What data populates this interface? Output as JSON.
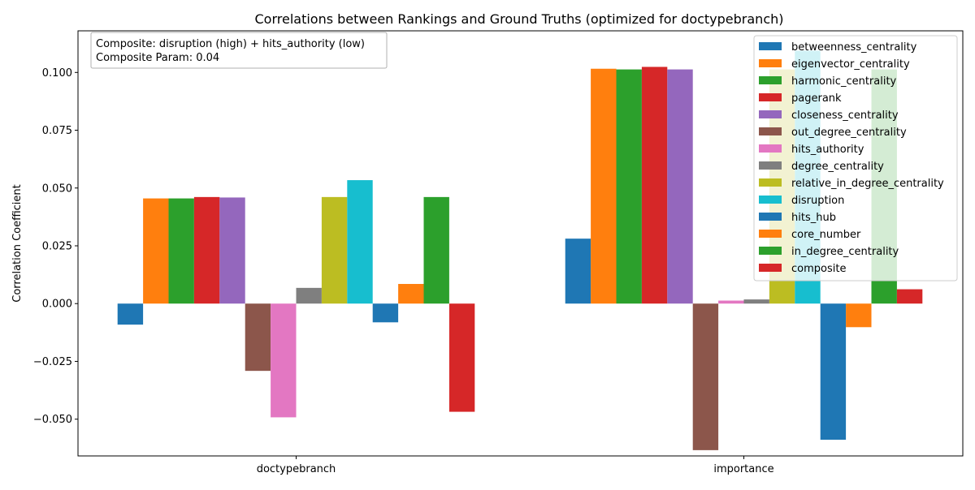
{
  "chart_data": {
    "type": "bar",
    "title": "Correlations between Rankings and Ground Truths (optimized for doctypebranch)",
    "xlabel": "",
    "ylabel": "Correlation Coefficient",
    "categories": [
      "doctypebranch",
      "importance"
    ],
    "ylim": [
      -0.0659,
      0.118
    ],
    "yticks": [
      -0.05,
      -0.025,
      0.0,
      0.025,
      0.05,
      0.075,
      0.1
    ],
    "ytick_labels": [
      "−0.050",
      "−0.025",
      "0.000",
      "0.025",
      "0.050",
      "0.075",
      "0.100"
    ],
    "grid": false,
    "legend_position": "top-right",
    "annotation": {
      "line1": "Composite: disruption (high) + hits_authority (low)",
      "line2": "Composite Param: 0.04"
    },
    "series": [
      {
        "name": "betweenness_centrality",
        "color": "#1f77b4",
        "values": [
          -0.0091,
          0.0281
        ]
      },
      {
        "name": "eigenvector_centrality",
        "color": "#ff7f0e",
        "values": [
          0.0455,
          0.1016
        ]
      },
      {
        "name": "harmonic_centrality",
        "color": "#2ca02c",
        "values": [
          0.0455,
          0.1013
        ]
      },
      {
        "name": "pagerank",
        "color": "#d62728",
        "values": [
          0.0461,
          0.1024
        ]
      },
      {
        "name": "closeness_centrality",
        "color": "#9467bd",
        "values": [
          0.0459,
          0.1013
        ]
      },
      {
        "name": "out_degree_centrality",
        "color": "#8c564b",
        "values": [
          -0.0291,
          -0.0634
        ]
      },
      {
        "name": "hits_authority",
        "color": "#e377c2",
        "values": [
          -0.0492,
          0.0013
        ]
      },
      {
        "name": "degree_centrality",
        "color": "#7f7f7f",
        "values": [
          0.0068,
          0.0018
        ]
      },
      {
        "name": "relative_in_degree_centrality",
        "color": "#bcbd22",
        "values": [
          0.0461,
          0.1013
        ]
      },
      {
        "name": "disruption",
        "color": "#17becf",
        "values": [
          0.0534,
          0.1094
        ]
      },
      {
        "name": "hits_hub",
        "color": "#1f77b4",
        "values": [
          -0.0081,
          -0.0589
        ]
      },
      {
        "name": "core_number",
        "color": "#ff7f0e",
        "values": [
          0.0085,
          -0.0102
        ]
      },
      {
        "name": "in_degree_centrality",
        "color": "#2ca02c",
        "values": [
          0.0461,
          0.1013
        ]
      },
      {
        "name": "composite",
        "color": "#d62728",
        "values": [
          -0.0468,
          0.0062
        ]
      }
    ]
  }
}
